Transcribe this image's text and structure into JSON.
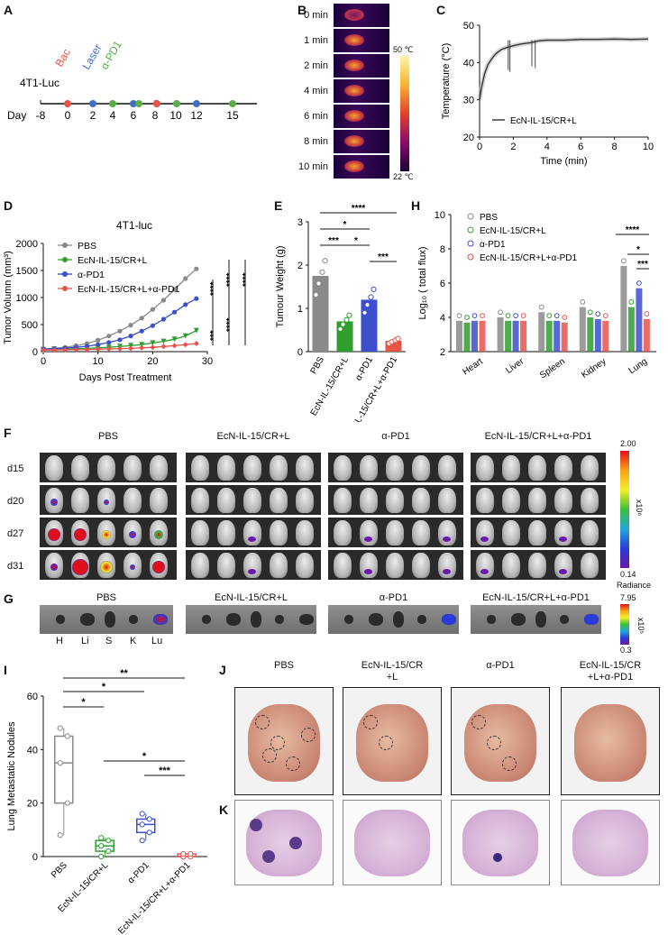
{
  "panel_letters": [
    "A",
    "B",
    "C",
    "D",
    "E",
    "F",
    "G",
    "H",
    "I",
    "J",
    "K"
  ],
  "A": {
    "model": "4T1-Luc",
    "day_label": "Day",
    "days": [
      "-8",
      "0",
      "2",
      "4",
      "6",
      "8",
      "10",
      "12",
      "15"
    ],
    "legend": [
      "Bac",
      "Laser",
      "α-PD1"
    ],
    "colors": {
      "bac": "#e8534a",
      "laser": "#3f6fc9",
      "apd1": "#57b045"
    }
  },
  "B": {
    "times": [
      "0 min",
      "1 min",
      "2 min",
      "4 min",
      "6 min",
      "8 min",
      "10 min"
    ],
    "scale_max": "50 ℃",
    "scale_min": "22 ℃"
  },
  "C": {
    "chart_data": {
      "type": "line",
      "xlabel": "Time (min)",
      "ylabel": "Temperature (°C)",
      "xlim": [
        0,
        10
      ],
      "ylim": [
        20,
        50
      ],
      "xticks": [
        "0",
        "2",
        "4",
        "6",
        "8",
        "10"
      ],
      "yticks": [
        "20",
        "30",
        "40",
        "50"
      ],
      "series": [
        {
          "name": "EcN-IL-15/CR+L",
          "x": [
            0,
            0.1,
            0.3,
            0.5,
            0.8,
            1.0,
            1.3,
            1.6,
            2.0,
            2.5,
            3.0,
            3.5,
            4,
            5,
            6,
            7,
            8,
            9,
            10
          ],
          "y": [
            30,
            33,
            37,
            39.5,
            41.5,
            42.5,
            43.5,
            44,
            44.5,
            45,
            45.3,
            45.8,
            46,
            46,
            46.2,
            46.2,
            46.3,
            46.2,
            46.3
          ]
        }
      ]
    }
  },
  "D": {
    "chart_data": {
      "type": "line",
      "title": "4T1-luc",
      "xlabel": "Days Post Treatment",
      "ylabel": "Tumor Volumn (mm³)",
      "xlim": [
        0,
        30
      ],
      "ylim": [
        0,
        2000
      ],
      "xticks": [
        "0",
        "10",
        "20",
        "30"
      ],
      "yticks": [
        "0",
        "500",
        "1000",
        "1500",
        "2000"
      ],
      "x": [
        0,
        2,
        4,
        6,
        8,
        10,
        12,
        14,
        16,
        18,
        20,
        22,
        24,
        26,
        28
      ],
      "series": [
        {
          "name": "PBS",
          "color": "#8a8a8a",
          "values": [
            50,
            60,
            80,
            110,
            150,
            210,
            290,
            380,
            490,
            620,
            780,
            950,
            1150,
            1350,
            1530
          ]
        },
        {
          "name": "EcN-IL-15/CR+L",
          "color": "#2f9e2f",
          "values": [
            40,
            45,
            50,
            55,
            60,
            70,
            80,
            95,
            110,
            130,
            160,
            190,
            230,
            290,
            390
          ]
        },
        {
          "name": "α-PD1",
          "color": "#3b4fcf",
          "values": [
            45,
            55,
            65,
            80,
            100,
            130,
            170,
            220,
            290,
            380,
            480,
            600,
            730,
            870,
            980
          ]
        },
        {
          "name": "EcN-IL-15/CR+L+α-PD1",
          "color": "#e8534a",
          "values": [
            30,
            32,
            35,
            38,
            40,
            45,
            50,
            55,
            60,
            70,
            80,
            95,
            110,
            130,
            150
          ]
        }
      ],
      "significance": [
        "****",
        "****",
        "****",
        "****",
        "***"
      ]
    }
  },
  "E": {
    "chart_data": {
      "type": "bar",
      "ylabel": "Tumour Weight (g)",
      "ylim": [
        0,
        3
      ],
      "yticks": [
        "0",
        "1",
        "2",
        "3"
      ],
      "categories": [
        "PBS",
        "EcN-IL-15/CR+L",
        "α-PD1",
        "EcN-IL-15/CR+L+α-PD1"
      ],
      "values": [
        1.75,
        0.7,
        1.2,
        0.25
      ],
      "colors": [
        "#8a8a8a",
        "#2f9e2f",
        "#3b4fcf",
        "#e8534a"
      ],
      "significance": [
        "****",
        "*",
        "***",
        "*",
        "***"
      ]
    }
  },
  "H": {
    "chart_data": {
      "type": "bar",
      "ylabel": "Log₁₀ ( total flux)",
      "ylim": [
        2,
        10
      ],
      "yticks": [
        "2",
        "4",
        "6",
        "8",
        "10"
      ],
      "categories": [
        "Heart",
        "Liver",
        "Spleen",
        "Kidney",
        "Lung"
      ],
      "series": [
        {
          "name": "PBS",
          "color": "#8a8a8a",
          "values": [
            3.8,
            4.0,
            4.3,
            4.6,
            7.0
          ]
        },
        {
          "name": "EcN-IL-15/CR+L",
          "color": "#2f9e2f",
          "values": [
            3.7,
            3.8,
            3.8,
            4.0,
            4.6
          ]
        },
        {
          "name": "α-PD1",
          "color": "#3b4fcf",
          "values": [
            3.8,
            3.8,
            3.8,
            3.9,
            5.7
          ]
        },
        {
          "name": "EcN-IL-15/CR+L+α-PD1",
          "color": "#e8534a",
          "values": [
            3.8,
            3.8,
            3.7,
            3.8,
            3.9
          ]
        }
      ],
      "significance": [
        "****",
        "*",
        "***"
      ]
    }
  },
  "F": {
    "groups": [
      "PBS",
      "EcN-IL-15/CR+L",
      "α-PD1",
      "EcN-IL-15/CR+L+α-PD1"
    ],
    "days": [
      "d15",
      "d20",
      "d27",
      "d31"
    ],
    "scale_max": "2.00",
    "scale_min": "0.14",
    "scale_unit": "x10⁶",
    "scale_label": "Radiance"
  },
  "G": {
    "groups": [
      "PBS",
      "EcN-IL-15/CR+L",
      "α-PD1",
      "EcN-IL-15/CR+L+α-PD1"
    ],
    "organs": [
      "H",
      "Li",
      "S",
      "K",
      "Lu"
    ],
    "scale_max": "7.95",
    "scale_min": "0.3",
    "scale_unit": "x10⁵"
  },
  "I": {
    "chart_data": {
      "type": "box",
      "ylabel": "Lung Metastatic Nodules",
      "ylim": [
        0,
        60
      ],
      "yticks": [
        "0",
        "20",
        "40",
        "60"
      ],
      "categories": [
        "PBS",
        "EcN-IL-15/CR+L",
        "α-PD1",
        "EcN-IL-15/CR+L+α-PD1"
      ],
      "colors": [
        "#8a8a8a",
        "#2f9e2f",
        "#3b4fcf",
        "#e8534a"
      ],
      "points": [
        [
          8,
          20,
          35,
          45,
          48
        ],
        [
          0,
          2,
          4,
          6,
          7
        ],
        [
          6,
          9,
          12,
          14,
          16
        ],
        [
          0,
          0,
          0,
          1,
          1
        ]
      ],
      "significance": [
        "**",
        "*",
        "*",
        "*",
        "***"
      ]
    }
  },
  "J": {
    "groups": [
      "PBS",
      "EcN-IL-15/CR\n+L",
      "α-PD1",
      "EcN-IL-15/CR\n+L+α-PD1"
    ]
  }
}
